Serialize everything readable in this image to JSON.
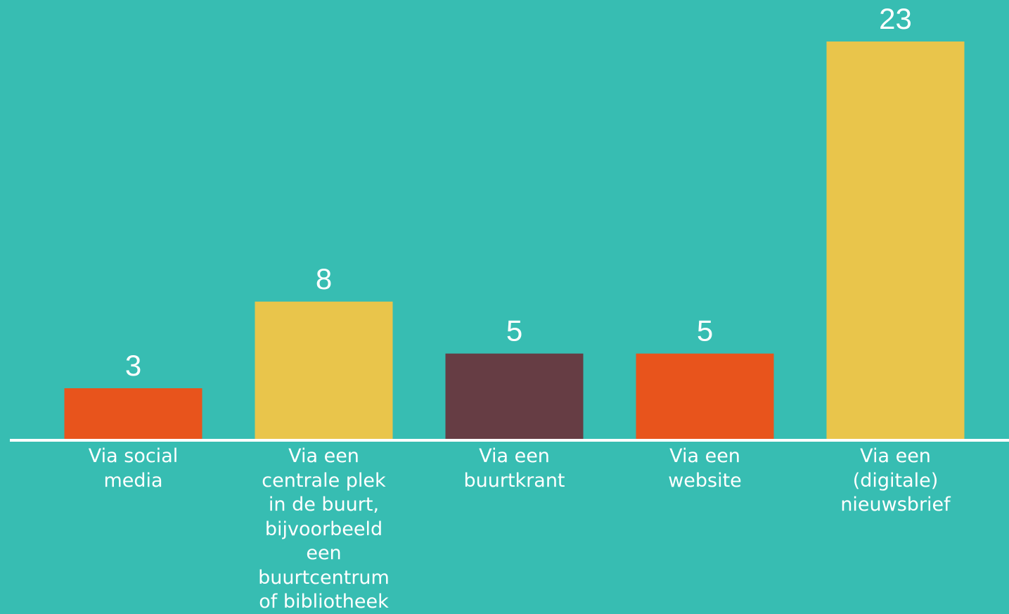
{
  "chart_data": {
    "type": "bar",
    "categories": [
      "Via social media",
      "Via een centrale plek in de buurt, bijvoorbeeld een buurtcentrum of bibliotheek",
      "Via een buurtkrant",
      "Via een website",
      "Via een (digitale) nieuwsbrief"
    ],
    "category_lines": [
      [
        "Via social",
        "media"
      ],
      [
        "Via een",
        "centrale plek",
        "in de buurt,",
        "bijvoorbeeld",
        "een",
        "buurtcentrum",
        "of bibliotheek"
      ],
      [
        "Via een",
        "buurtkrant"
      ],
      [
        "Via een",
        "website"
      ],
      [
        "Via een",
        "(digitale)",
        "nieuwsbrief"
      ]
    ],
    "values": [
      3,
      8,
      5,
      5,
      23
    ],
    "value_labels": [
      "3",
      "8",
      "5",
      "5",
      "23"
    ],
    "bar_colors": [
      "#E8541C",
      "#E9C54B",
      "#663D44",
      "#E8541C",
      "#E9C54B"
    ],
    "ylim": [
      0,
      23
    ],
    "grid": false,
    "title": "",
    "xlabel": "",
    "ylabel": ""
  },
  "colors": {
    "background": "#37BDB2",
    "baseline": "#FFFFFF",
    "text": "#FFFFFF"
  }
}
